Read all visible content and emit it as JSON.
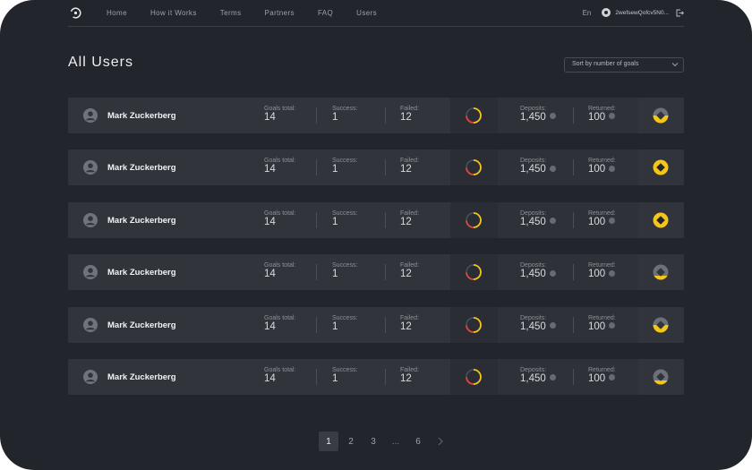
{
  "nav": {
    "links": [
      "Home",
      "How it Works",
      "Terms",
      "Partners",
      "FAQ",
      "Users"
    ],
    "language": "En",
    "wallet_address": "2wefsewQofcv5N0...",
    "icons": {
      "logo": "logo-icon",
      "wallet": "wallet-icon",
      "logout": "logout-icon"
    }
  },
  "page": {
    "title": "All Users",
    "sort_label": "Sort by number of goals"
  },
  "labels": {
    "goals_total": "Goals total:",
    "success": "Success:",
    "failed": "Failed:",
    "deposits": "Deposits:",
    "returned": "Returned:"
  },
  "colors": {
    "accent": "#f5c518",
    "failed": "#e0463a",
    "muted_badge": "#6c7078"
  },
  "users": [
    {
      "name": "Mark Zuckerberg",
      "goals_total": "14",
      "success": "1",
      "failed": "12",
      "deposits": "1,450",
      "returned": "100",
      "badge": "half"
    },
    {
      "name": "Mark Zuckerberg",
      "goals_total": "14",
      "success": "1",
      "failed": "12",
      "deposits": "1,450",
      "returned": "100",
      "badge": "full"
    },
    {
      "name": "Mark Zuckerberg",
      "goals_total": "14",
      "success": "1",
      "failed": "12",
      "deposits": "1,450",
      "returned": "100",
      "badge": "full"
    },
    {
      "name": "Mark Zuckerberg",
      "goals_total": "14",
      "success": "1",
      "failed": "12",
      "deposits": "1,450",
      "returned": "100",
      "badge": "low"
    },
    {
      "name": "Mark Zuckerberg",
      "goals_total": "14",
      "success": "1",
      "failed": "12",
      "deposits": "1,450",
      "returned": "100",
      "badge": "half"
    },
    {
      "name": "Mark Zuckerberg",
      "goals_total": "14",
      "success": "1",
      "failed": "12",
      "deposits": "1,450",
      "returned": "100",
      "badge": "low"
    }
  ],
  "pagination": {
    "pages": [
      "1",
      "2",
      "3"
    ],
    "ellipsis": "...",
    "last": "6",
    "active": "1"
  }
}
